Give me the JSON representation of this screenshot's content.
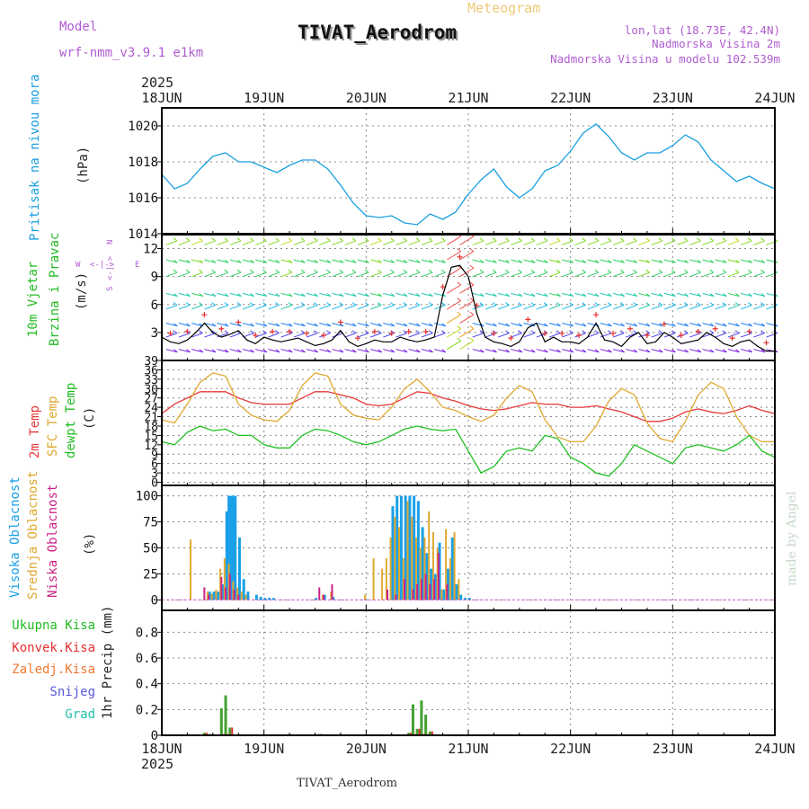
{
  "header": {
    "meteogram_label": "Meteogram",
    "model_label": "Model",
    "model_name": "wrf-nmm_v3.9.1 e1km",
    "station": "TIVAT_Aerodrom",
    "lonlat": "lon,lat (18.73E, 42.4N)",
    "altitude": "Nadmorska Visina 2m",
    "model_altitude": "Nadmorska Visina u modelu 102.539m",
    "footer_station": "TIVAT_Aerodrom",
    "watermark": "made by Angel"
  },
  "colors": {
    "pressure": "#1a9fe0",
    "wind_speed": "#000000",
    "gust": "#e83030",
    "temp2m": "#e83838",
    "sfc_temp": "#e0a830",
    "dewpt": "#22c022",
    "cloud_high": "#1aa0e8",
    "cloud_mid": "#e0a830",
    "cloud_low": "#cc2288",
    "precip_total": "#44a030",
    "precip_conv": "#e03030",
    "header_purple": "#b05cd0",
    "meteogram_label": "#f0c878",
    "watermark": "#c8d8c8"
  },
  "chart_data": [
    {
      "type": "line",
      "panel": "pressure",
      "ylabel_lines": [
        "Pritisak na nivou mora",
        "(hPa)"
      ],
      "ylim": [
        1014,
        1021
      ],
      "yticks": [
        1014,
        1016,
        1018,
        1020
      ],
      "x_unit": "hours since 18 Jun 2025 00 UTC",
      "series": [
        {
          "x": [
            0,
            3,
            6,
            9,
            12,
            15,
            18,
            21,
            24,
            27,
            30,
            33,
            36,
            39,
            42,
            45,
            48,
            51,
            54,
            57,
            60,
            63,
            66,
            69,
            72,
            75,
            78,
            81,
            84,
            87,
            90,
            93,
            96,
            99,
            102,
            105,
            108,
            111,
            114,
            117,
            120,
            123,
            126,
            129,
            132,
            135,
            138,
            141,
            144
          ],
          "values": [
            1017.3,
            1016.5,
            1016.8,
            1017.6,
            1018.3,
            1018.5,
            1018.0,
            1018.0,
            1017.7,
            1017.4,
            1017.8,
            1018.1,
            1018.1,
            1017.6,
            1016.7,
            1015.7,
            1015.0,
            1014.9,
            1015.0,
            1014.6,
            1014.5,
            1015.1,
            1014.8,
            1015.2,
            1016.2,
            1017.0,
            1017.6,
            1016.6,
            1016.0,
            1016.5,
            1017.5,
            1017.8,
            1018.6,
            1019.6,
            1020.1,
            1019.4,
            1018.5,
            1018.1,
            1018.5,
            1018.5,
            1018.9,
            1019.5,
            1019.1,
            1018.1,
            1017.5,
            1016.9,
            1017.2,
            1016.8,
            1016.5
          ]
        }
      ]
    },
    {
      "type": "line",
      "panel": "wind",
      "ylabel_lines": [
        "10m Vjetar",
        "Brzina i Pravac",
        "(m/s)"
      ],
      "compass_labels": [
        "N",
        "S",
        "W",
        "E"
      ],
      "ylim": [
        0,
        13.5
      ],
      "yticks": [
        3,
        6,
        9,
        12
      ],
      "series": [
        {
          "name": "speed",
          "x": [
            0,
            2,
            4,
            6,
            8,
            10,
            12,
            14,
            16,
            18,
            20,
            22,
            24,
            26,
            28,
            30,
            32,
            34,
            36,
            38,
            40,
            42,
            44,
            46,
            48,
            50,
            52,
            54,
            56,
            58,
            60,
            62,
            64,
            66,
            68,
            70,
            72,
            74,
            76,
            78,
            80,
            82,
            84,
            86,
            88,
            90,
            92,
            94,
            96,
            98,
            100,
            102,
            104,
            106,
            108,
            110,
            112,
            114,
            116,
            118,
            120,
            122,
            124,
            126,
            128,
            130,
            132,
            134,
            136,
            138,
            140,
            142,
            144
          ],
          "values": [
            2.5,
            2.0,
            1.8,
            2.2,
            3.0,
            4.0,
            3.0,
            2.5,
            2.8,
            3.2,
            2.2,
            1.8,
            2.5,
            2.2,
            2.0,
            2.2,
            2.4,
            2.0,
            1.6,
            1.8,
            2.2,
            3.2,
            2.0,
            1.5,
            1.8,
            2.2,
            2.0,
            2.0,
            2.5,
            2.2,
            2.0,
            2.2,
            2.5,
            7.0,
            10.0,
            10.2,
            9.0,
            5.0,
            2.5,
            2.0,
            1.8,
            1.5,
            2.0,
            3.5,
            4.0,
            2.0,
            2.5,
            2.0,
            2.0,
            1.8,
            2.5,
            4.0,
            2.2,
            2.0,
            1.5,
            2.5,
            3.0,
            1.8,
            2.0,
            3.0,
            2.5,
            1.8,
            2.0,
            2.2,
            3.0,
            2.5,
            1.8,
            1.5,
            2.0,
            2.2,
            1.5,
            1.0,
            1.0
          ]
        }
      ]
    },
    {
      "type": "line",
      "panel": "temperature",
      "ylabel_lines": [
        "2m Temp",
        "SFC Temp",
        "dewpt Temp",
        "(C)"
      ],
      "ylim": [
        -1,
        39
      ],
      "yticks": [
        0,
        3,
        6,
        9,
        12,
        15,
        18,
        21,
        24,
        27,
        30,
        33,
        36,
        39
      ],
      "series": [
        {
          "name": "2m Temp",
          "x": [
            0,
            3,
            6,
            9,
            12,
            15,
            18,
            21,
            24,
            27,
            30,
            33,
            36,
            39,
            42,
            45,
            48,
            51,
            54,
            57,
            60,
            63,
            66,
            69,
            72,
            75,
            78,
            81,
            84,
            87,
            90,
            93,
            96,
            99,
            102,
            105,
            108,
            111,
            114,
            117,
            120,
            123,
            126,
            129,
            132,
            135,
            138,
            141,
            144
          ],
          "values": [
            22,
            25,
            27,
            29,
            29,
            29,
            27,
            25.5,
            25,
            25,
            25,
            27,
            29,
            29,
            28,
            27,
            25,
            24.5,
            25,
            27,
            29,
            28.5,
            27,
            26,
            24.5,
            23.5,
            23,
            23.5,
            24.5,
            25.5,
            25,
            25,
            24,
            24,
            24.5,
            23.5,
            22.5,
            21,
            19.5,
            19.5,
            20.5,
            22.5,
            23.5,
            22.5,
            22,
            23,
            24.5,
            23,
            22
          ]
        },
        {
          "name": "SFC Temp",
          "x": [
            0,
            3,
            6,
            9,
            12,
            15,
            18,
            21,
            24,
            27,
            30,
            33,
            36,
            39,
            42,
            45,
            48,
            51,
            54,
            57,
            60,
            63,
            66,
            69,
            72,
            75,
            78,
            81,
            84,
            87,
            90,
            93,
            96,
            99,
            102,
            105,
            108,
            111,
            114,
            117,
            120,
            123,
            126,
            129,
            132,
            135,
            138,
            141,
            144
          ],
          "values": [
            20,
            19,
            25,
            32,
            35,
            34,
            25,
            21.5,
            20,
            19.5,
            23,
            31,
            35,
            34,
            25,
            21.5,
            20.5,
            20,
            24,
            30,
            33,
            29,
            24,
            23,
            21,
            19.5,
            21.5,
            27,
            31,
            29,
            20,
            14.5,
            13,
            13,
            18,
            26,
            30,
            28,
            19,
            14,
            13,
            19.5,
            28,
            32,
            30,
            21,
            15,
            13,
            13
          ]
        },
        {
          "name": "dewpt Temp",
          "x": [
            0,
            3,
            6,
            9,
            12,
            15,
            18,
            21,
            24,
            27,
            30,
            33,
            36,
            39,
            42,
            45,
            48,
            51,
            54,
            57,
            60,
            63,
            66,
            69,
            72,
            75,
            78,
            81,
            84,
            87,
            90,
            93,
            96,
            99,
            102,
            105,
            108,
            111,
            114,
            117,
            120,
            123,
            126,
            129,
            132,
            135,
            138,
            141,
            144
          ],
          "values": [
            13,
            12,
            16,
            18,
            16.5,
            17,
            15,
            15,
            12,
            11,
            11,
            15,
            17,
            16.5,
            15,
            13,
            12,
            13,
            15,
            17,
            18,
            17,
            16.5,
            17,
            10,
            3,
            5,
            10,
            11,
            10,
            15,
            14,
            8,
            6,
            3,
            2,
            6,
            12,
            10,
            8,
            6,
            11,
            12,
            11,
            10,
            12,
            15,
            10,
            8
          ]
        }
      ]
    },
    {
      "type": "bar",
      "panel": "clouds",
      "ylabel_lines": [
        "Visoka Oblacnost",
        "Srednja Oblacnost",
        "Niska Oblacnost",
        "(%)"
      ],
      "ylim": [
        -10,
        110
      ],
      "yticks": [
        0,
        25,
        50,
        75,
        100
      ],
      "series": [
        {
          "name": "Visoka Oblacnost",
          "x": [
            11,
            11.5,
            12,
            12.5,
            13,
            14,
            15,
            15.5,
            16,
            16.5,
            17,
            18,
            19,
            20,
            22,
            23,
            24,
            25,
            26,
            36,
            38,
            40,
            54,
            55,
            56,
            57,
            58,
            59,
            60,
            61,
            62,
            63,
            64,
            65,
            66,
            67,
            68,
            69,
            70,
            71,
            72
          ],
          "values": [
            8,
            6,
            8,
            5,
            8,
            15,
            85,
            100,
            100,
            100,
            100,
            60,
            20,
            8,
            5,
            3,
            2,
            2,
            2,
            2,
            5,
            3,
            90,
            100,
            100,
            100,
            100,
            100,
            95,
            70,
            45,
            30,
            25,
            55,
            10,
            30,
            60,
            15,
            5,
            2,
            2
          ]
        },
        {
          "name": "Srednja Oblacnost",
          "x": [
            7,
            11,
            12,
            13,
            14,
            15,
            16,
            17,
            18,
            19,
            20,
            38,
            40,
            48,
            50,
            52,
            53,
            54,
            55,
            56,
            57,
            58,
            59,
            60,
            61,
            62,
            63,
            64,
            65,
            66,
            67,
            68,
            69,
            70
          ],
          "values": [
            58,
            8,
            6,
            10,
            30,
            40,
            35,
            18,
            12,
            8,
            5,
            5,
            8,
            5,
            40,
            30,
            40,
            60,
            80,
            70,
            40,
            95,
            80,
            60,
            50,
            60,
            85,
            65,
            50,
            10,
            68,
            40,
            65,
            20
          ]
        },
        {
          "name": "Niska Oblacnost",
          "x": [
            10,
            11,
            14,
            15,
            16,
            17,
            18,
            37,
            38,
            40,
            53,
            55,
            57,
            59,
            60,
            61,
            62,
            63,
            64,
            65,
            67
          ],
          "values": [
            12,
            5,
            22,
            12,
            25,
            10,
            5,
            12,
            5,
            15,
            10,
            5,
            20,
            10,
            15,
            20,
            25,
            15,
            20,
            45,
            15
          ]
        }
      ]
    },
    {
      "type": "bar",
      "panel": "precip",
      "ylabel_lines": [
        "1hr Precip (mm)"
      ],
      "legend": [
        "Ukupna Kisa",
        "Konvek.Kisa",
        "Zaledj.Kisa",
        "Snijeg",
        "Grad"
      ],
      "legend_colors": [
        "#22bb22",
        "#e83030",
        "#f07830",
        "#5a5adc",
        "#22c0a8"
      ],
      "ylim": [
        0,
        0.97
      ],
      "yticks": [
        0,
        0.2,
        0.4,
        0.6,
        0.8
      ],
      "series": [
        {
          "name": "Ukupna Kisa",
          "x": [
            10,
            11,
            14,
            15,
            16,
            37,
            39,
            58,
            59,
            60,
            61,
            62,
            63
          ],
          "values": [
            0.02,
            0.01,
            0.21,
            0.31,
            0.06,
            0.01,
            0.005,
            0.02,
            0.24,
            0.05,
            0.27,
            0.16,
            0.03
          ]
        },
        {
          "name": "Konvek.Kisa",
          "x": [
            10,
            11,
            14,
            15,
            16,
            37,
            39,
            58,
            59,
            60,
            61,
            62,
            63
          ],
          "values": [
            0.02,
            0.01,
            0.01,
            0.01,
            0.06,
            0.01,
            0.005,
            0.02,
            0.01,
            0.05,
            0.01,
            0.01,
            0.03
          ]
        }
      ]
    }
  ],
  "x_axis": {
    "date_labels": [
      "18JUN",
      "19JUN",
      "20JUN",
      "21JUN",
      "22JUN",
      "23JUN",
      "24JUN"
    ],
    "year_label": "2025"
  }
}
